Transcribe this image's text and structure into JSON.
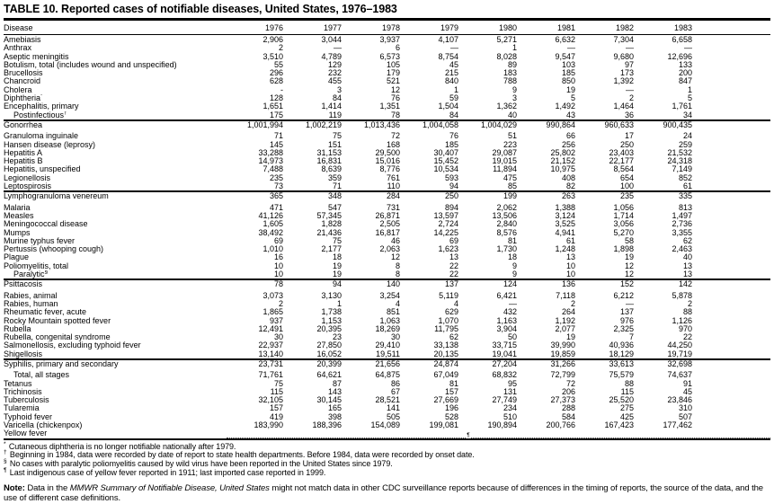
{
  "title": "TABLE 10. Reported cases of notifiable diseases, United States, 1976–1983",
  "colors": {
    "text": "#000000",
    "background": "#ffffff",
    "rule": "#000000"
  },
  "table": {
    "columns": [
      "Disease",
      "1976",
      "1977",
      "1978",
      "1979",
      "1980",
      "1981",
      "1982",
      "1983"
    ],
    "groups": [
      [
        {
          "label": "Amebiasis",
          "values": [
            "2,906",
            "3,044",
            "3,937",
            "4,107",
            "5,271",
            "6,632",
            "7,304",
            "6,658"
          ]
        },
        {
          "label": "Anthrax",
          "values": [
            "2",
            "—",
            "6",
            "—",
            "1",
            "—",
            "—",
            "—"
          ]
        },
        {
          "label": "Aseptic meningitis",
          "values": [
            "3,510",
            "4,789",
            "6,573",
            "8,754",
            "8,028",
            "9,547",
            "9,680",
            "12,696"
          ]
        },
        {
          "label": "Botulism, total (includes wound and unspecified)",
          "values": [
            "55",
            "129",
            "105",
            "45",
            "89",
            "103",
            "97",
            "133"
          ]
        },
        {
          "label": "Brucellosis",
          "values": [
            "296",
            "232",
            "179",
            "215",
            "183",
            "185",
            "173",
            "200"
          ]
        },
        {
          "label": "Chancroid",
          "values": [
            "628",
            "455",
            "521",
            "840",
            "788",
            "850",
            "1,392",
            "847"
          ]
        },
        {
          "label": "Cholera",
          "values": [
            "-",
            "3",
            "12",
            "1",
            "9",
            "19",
            "—",
            "1"
          ]
        },
        {
          "label": "Diphtheria",
          "marker": "*",
          "values": [
            "128",
            "84",
            "76",
            "59",
            "3",
            "5",
            "2",
            "5"
          ]
        },
        {
          "label": "Encephalitis, primary",
          "values": [
            "1,651",
            "1,414",
            "1,351",
            "1,504",
            "1,362",
            "1,492",
            "1,464",
            "1,761"
          ]
        },
        {
          "label": "Postinfectious",
          "marker": "†",
          "indent": true,
          "values": [
            "175",
            "119",
            "78",
            "84",
            "40",
            "43",
            "36",
            "34"
          ]
        }
      ],
      [
        {
          "label": "Gonorrhea",
          "gap_after": true,
          "values": [
            "1,001,994",
            "1,002,219",
            "1,013,436",
            "1,004,058",
            "1,004,029",
            "990,864",
            "960,633",
            "900,435"
          ]
        },
        {
          "label": "Granuloma inguinale",
          "values": [
            "71",
            "75",
            "72",
            "76",
            "51",
            "66",
            "17",
            "24"
          ]
        },
        {
          "label": "Hansen disease (leprosy)",
          "values": [
            "145",
            "151",
            "168",
            "185",
            "223",
            "256",
            "250",
            "259"
          ]
        },
        {
          "label": "Hepatitis A",
          "values": [
            "33,288",
            "31,153",
            "29,500",
            "30,407",
            "29,087",
            "25,802",
            "23,403",
            "21,532"
          ]
        },
        {
          "label": "Hepatitis B",
          "values": [
            "14,973",
            "16,831",
            "15,016",
            "15,452",
            "19,015",
            "21,152",
            "22,177",
            "24,318"
          ]
        },
        {
          "label": "Hepatitis, unspecified",
          "values": [
            "7,488",
            "8,639",
            "8,776",
            "10,534",
            "11,894",
            "10,975",
            "8,564",
            "7,149"
          ]
        },
        {
          "label": "Legionellosis",
          "values": [
            "235",
            "359",
            "761",
            "593",
            "475",
            "408",
            "654",
            "852"
          ]
        },
        {
          "label": "Leptospirosis",
          "values": [
            "73",
            "71",
            "110",
            "94",
            "85",
            "82",
            "100",
            "61"
          ]
        }
      ],
      [
        {
          "label": "Lymphogranuloma venereum",
          "gap_after": true,
          "values": [
            "365",
            "348",
            "284",
            "250",
            "199",
            "263",
            "235",
            "335"
          ]
        },
        {
          "label": "Malaria",
          "values": [
            "471",
            "547",
            "731",
            "894",
            "2,062",
            "1,388",
            "1,056",
            "813"
          ]
        },
        {
          "label": "Measles",
          "values": [
            "41,126",
            "57,345",
            "26,871",
            "13,597",
            "13,506",
            "3,124",
            "1,714",
            "1,497"
          ]
        },
        {
          "label": "Meningococcal disease",
          "values": [
            "1,605",
            "1,828",
            "2,505",
            "2,724",
            "2,840",
            "3,525",
            "3,056",
            "2,736"
          ]
        },
        {
          "label": "Mumps",
          "values": [
            "38,492",
            "21,436",
            "16,817",
            "14,225",
            "8,576",
            "4,941",
            "5,270",
            "3,355"
          ]
        },
        {
          "label": "Murine typhus fever",
          "values": [
            "69",
            "75",
            "46",
            "69",
            "81",
            "61",
            "58",
            "62"
          ]
        },
        {
          "label": "Pertussis (whooping cough)",
          "values": [
            "1,010",
            "2,177",
            "2,063",
            "1,623",
            "1,730",
            "1,248",
            "1,898",
            "2,463"
          ]
        },
        {
          "label": "Plague",
          "values": [
            "16",
            "18",
            "12",
            "13",
            "18",
            "13",
            "19",
            "40"
          ]
        },
        {
          "label": "Poliomyelitis, total",
          "values": [
            "10",
            "19",
            "8",
            "22",
            "9",
            "10",
            "12",
            "13"
          ]
        },
        {
          "label": "Paralytic",
          "marker": "§",
          "indent": true,
          "values": [
            "10",
            "19",
            "8",
            "22",
            "9",
            "10",
            "12",
            "13"
          ]
        }
      ],
      [
        {
          "label": "Psittacosis",
          "gap_after": true,
          "values": [
            "78",
            "94",
            "140",
            "137",
            "124",
            "136",
            "152",
            "142"
          ]
        },
        {
          "label": "Rabies, animal",
          "values": [
            "3,073",
            "3,130",
            "3,254",
            "5,119",
            "6,421",
            "7,118",
            "6,212",
            "5,878"
          ]
        },
        {
          "label": "Rabies, human",
          "values": [
            "2",
            "1",
            "4",
            "4",
            "—",
            "2",
            "—",
            "2"
          ]
        },
        {
          "label": "Rheumatic fever, acute",
          "values": [
            "1,865",
            "1,738",
            "851",
            "629",
            "432",
            "264",
            "137",
            "88"
          ]
        },
        {
          "label": "Rocky Mountain spotted fever",
          "values": [
            "937",
            "1,153",
            "1,063",
            "1,070",
            "1,163",
            "1,192",
            "976",
            "1,126"
          ]
        },
        {
          "label": "Rubella",
          "values": [
            "12,491",
            "20,395",
            "18,269",
            "11,795",
            "3,904",
            "2,077",
            "2,325",
            "970"
          ]
        },
        {
          "label": "Rubella, congenital syndrome",
          "values": [
            "30",
            "23",
            "30",
            "62",
            "50",
            "19",
            "7",
            "22"
          ]
        },
        {
          "label": "Salmonellosis, excluding typhoid fever",
          "values": [
            "22,937",
            "27,850",
            "29,410",
            "33,138",
            "33,715",
            "39,990",
            "40,936",
            "44,250"
          ]
        },
        {
          "label": "Shigellosis",
          "values": [
            "13,140",
            "16,052",
            "19,511",
            "20,135",
            "19,041",
            "19,859",
            "18,129",
            "19,719"
          ]
        }
      ],
      [
        {
          "label": "Syphilis, primary and secondary",
          "gap_after": true,
          "values": [
            "23,731",
            "20,399",
            "21,656",
            "24,874",
            "27,204",
            "31,266",
            "33,613",
            "32,698"
          ]
        },
        {
          "label": "Total, all stages",
          "indent": true,
          "values": [
            "71,761",
            "64,621",
            "64,875",
            "67,049",
            "68,832",
            "72,799",
            "75,579",
            "74,637"
          ]
        },
        {
          "label": "Tetanus",
          "values": [
            "75",
            "87",
            "86",
            "81",
            "95",
            "72",
            "88",
            "91"
          ]
        },
        {
          "label": "Trichinosis",
          "values": [
            "115",
            "143",
            "67",
            "157",
            "131",
            "206",
            "115",
            "45"
          ]
        },
        {
          "label": "Tuberculosis",
          "values": [
            "32,105",
            "30,145",
            "28,521",
            "27,669",
            "27,749",
            "27,373",
            "25,520",
            "23,846"
          ]
        },
        {
          "label": "Tularemia",
          "values": [
            "157",
            "165",
            "141",
            "196",
            "234",
            "288",
            "275",
            "310"
          ]
        },
        {
          "label": "Typhoid fever",
          "values": [
            "419",
            "398",
            "505",
            "528",
            "510",
            "584",
            "425",
            "507"
          ]
        },
        {
          "label": "Varicella (chickenpox)",
          "values": [
            "183,990",
            "188,396",
            "154,089",
            "199,081",
            "190,894",
            "200,766",
            "167,423",
            "177,462"
          ]
        },
        {
          "label": "Yellow fever",
          "dotted": true,
          "marker_mid": "¶"
        }
      ]
    ]
  },
  "footnotes": [
    {
      "symbol": "*",
      "text": "Cutaneous diphtheria is no longer notifiable nationally after 1979."
    },
    {
      "symbol": "†",
      "text": "Beginning in 1984, data were recorded by date of report to state health departments. Before 1984, data were recorded by onset date."
    },
    {
      "symbol": "§",
      "text": "No cases with paralytic poliomyelitis caused by wild virus have been reported in the United States since 1979."
    },
    {
      "symbol": "¶",
      "text": "Last indigenous case of yellow fever reported in 1911; last imported case reported in 1999."
    }
  ],
  "note": {
    "label": "Note:",
    "pre": " Data in the ",
    "italic": "MMWR Summary of Notifiable Disease, United States",
    "post": " might not match data in other CDC surveillance reports because of differences in the timing of reports, the source of the data, and the use of different case definitions."
  }
}
